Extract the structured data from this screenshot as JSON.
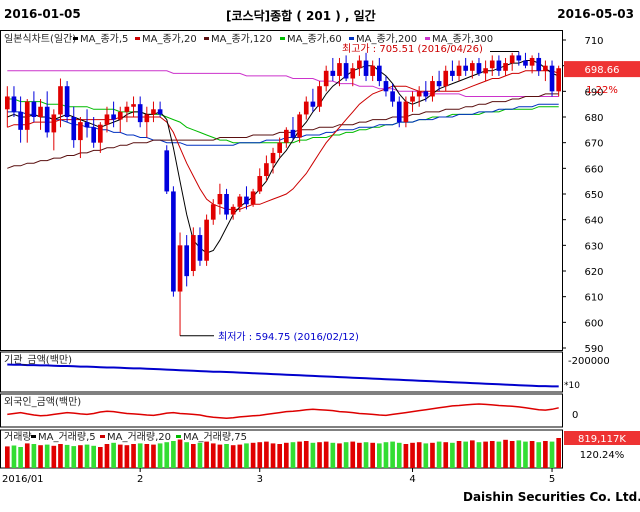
{
  "header": {
    "start_date": "2016-01-05",
    "title": "[코스닥]종합 ( 201 ) , 일간",
    "end_date": "2016-05-03"
  },
  "footer": {
    "company": "Daishin Securities Co. Ltd."
  },
  "colors": {
    "up": "#e00000",
    "down": "#0000dd",
    "ma5": "#000000",
    "ma20": "#cc0000",
    "ma60": "#00bb00",
    "ma120": "#5a1010",
    "ma200": "#0030c0",
    "ma300": "#cc33cc",
    "volume_up": "#e00000",
    "volume_down": "#33dd33",
    "institution_line": "#0000cc",
    "foreign_line": "#dd0000",
    "badge": "#ee3333"
  },
  "chart_data": {
    "type": "candlestick",
    "legend": [
      {
        "label": "일본식차트(일간)",
        "color": "#000000"
      },
      {
        "label": "MA_종가,5",
        "color": "#000000"
      },
      {
        "label": "MA_종가,20",
        "color": "#cc0000"
      },
      {
        "label": "MA_종가,120",
        "color": "#5a1010"
      },
      {
        "label": "MA_종가,60",
        "color": "#00bb00"
      },
      {
        "label": "MA_종가,200",
        "color": "#0030c0"
      },
      {
        "label": "MA_종가,300",
        "color": "#cc33cc"
      }
    ],
    "ylim": [
      590,
      710
    ],
    "yticks": [
      590,
      600,
      610,
      620,
      630,
      640,
      650,
      660,
      670,
      680,
      690,
      700,
      710
    ],
    "xticks": [
      "2016/01",
      "2",
      "3",
      "4",
      "5"
    ],
    "xtick_positions": [
      0,
      20,
      38,
      61,
      82
    ],
    "annotations": {
      "high": {
        "text": "최고가 : 705.51 (2016/04/26)",
        "index": 77,
        "value": 705.51
      },
      "low": {
        "text": "최저가 : 594.75 (2016/02/12)",
        "index": 26,
        "value": 594.75
      }
    },
    "last_price": "698.66",
    "last_change": "1.22%",
    "candles": [
      {
        "o": 683,
        "h": 692,
        "l": 676,
        "c": 688
      },
      {
        "o": 688,
        "h": 692,
        "l": 680,
        "c": 682
      },
      {
        "o": 682,
        "h": 688,
        "l": 670,
        "c": 675
      },
      {
        "o": 675,
        "h": 687,
        "l": 670,
        "c": 686
      },
      {
        "o": 686,
        "h": 690,
        "l": 678,
        "c": 680
      },
      {
        "o": 680,
        "h": 687,
        "l": 675,
        "c": 684
      },
      {
        "o": 684,
        "h": 690,
        "l": 672,
        "c": 674
      },
      {
        "o": 674,
        "h": 683,
        "l": 667,
        "c": 681
      },
      {
        "o": 681,
        "h": 695,
        "l": 676,
        "c": 692
      },
      {
        "o": 692,
        "h": 694,
        "l": 678,
        "c": 680
      },
      {
        "o": 680,
        "h": 684,
        "l": 668,
        "c": 671
      },
      {
        "o": 671,
        "h": 680,
        "l": 664,
        "c": 678
      },
      {
        "o": 678,
        "h": 683,
        "l": 672,
        "c": 676
      },
      {
        "o": 676,
        "h": 680,
        "l": 668,
        "c": 670
      },
      {
        "o": 670,
        "h": 678,
        "l": 666,
        "c": 677
      },
      {
        "o": 677,
        "h": 684,
        "l": 674,
        "c": 681
      },
      {
        "o": 681,
        "h": 686,
        "l": 676,
        "c": 679
      },
      {
        "o": 679,
        "h": 684,
        "l": 674,
        "c": 682
      },
      {
        "o": 682,
        "h": 686,
        "l": 678,
        "c": 684
      },
      {
        "o": 684,
        "h": 688,
        "l": 680,
        "c": 685
      },
      {
        "o": 685,
        "h": 688,
        "l": 676,
        "c": 678
      },
      {
        "o": 678,
        "h": 684,
        "l": 672,
        "c": 681
      },
      {
        "o": 681,
        "h": 686,
        "l": 678,
        "c": 683
      },
      {
        "o": 683,
        "h": 686,
        "l": 680,
        "c": 681
      },
      {
        "o": 667,
        "h": 669,
        "l": 650,
        "c": 651
      },
      {
        "o": 651,
        "h": 653,
        "l": 610,
        "c": 612
      },
      {
        "o": 612,
        "h": 635,
        "l": 594.75,
        "c": 630
      },
      {
        "o": 630,
        "h": 634,
        "l": 614,
        "c": 618
      },
      {
        "o": 620,
        "h": 637,
        "l": 618,
        "c": 634
      },
      {
        "o": 634,
        "h": 637,
        "l": 622,
        "c": 624
      },
      {
        "o": 624,
        "h": 642,
        "l": 622,
        "c": 640
      },
      {
        "o": 640,
        "h": 648,
        "l": 638,
        "c": 646
      },
      {
        "o": 646,
        "h": 654,
        "l": 642,
        "c": 650
      },
      {
        "o": 650,
        "h": 652,
        "l": 640,
        "c": 642
      },
      {
        "o": 642,
        "h": 646,
        "l": 640,
        "c": 645
      },
      {
        "o": 645,
        "h": 650,
        "l": 643,
        "c": 649
      },
      {
        "o": 649,
        "h": 653,
        "l": 644,
        "c": 646
      },
      {
        "o": 646,
        "h": 652,
        "l": 645,
        "c": 651
      },
      {
        "o": 651,
        "h": 660,
        "l": 650,
        "c": 657
      },
      {
        "o": 657,
        "h": 665,
        "l": 655,
        "c": 662
      },
      {
        "o": 662,
        "h": 668,
        "l": 658,
        "c": 666
      },
      {
        "o": 666,
        "h": 672,
        "l": 664,
        "c": 670
      },
      {
        "o": 670,
        "h": 676,
        "l": 668,
        "c": 675
      },
      {
        "o": 675,
        "h": 680,
        "l": 671,
        "c": 672
      },
      {
        "o": 672,
        "h": 682,
        "l": 670,
        "c": 681
      },
      {
        "o": 681,
        "h": 688,
        "l": 679,
        "c": 686
      },
      {
        "o": 686,
        "h": 691,
        "l": 682,
        "c": 684
      },
      {
        "o": 684,
        "h": 694,
        "l": 682,
        "c": 692
      },
      {
        "o": 692,
        "h": 700,
        "l": 690,
        "c": 698
      },
      {
        "o": 698,
        "h": 703,
        "l": 694,
        "c": 696
      },
      {
        "o": 696,
        "h": 703,
        "l": 692,
        "c": 701
      },
      {
        "o": 701,
        "h": 704,
        "l": 694,
        "c": 695
      },
      {
        "o": 695,
        "h": 701,
        "l": 692,
        "c": 699
      },
      {
        "o": 699,
        "h": 704,
        "l": 696,
        "c": 702
      },
      {
        "o": 702,
        "h": 705,
        "l": 694,
        "c": 696
      },
      {
        "o": 696,
        "h": 702,
        "l": 694,
        "c": 700
      },
      {
        "o": 700,
        "h": 703,
        "l": 692,
        "c": 694
      },
      {
        "o": 694,
        "h": 696,
        "l": 688,
        "c": 690
      },
      {
        "o": 690,
        "h": 693,
        "l": 684,
        "c": 686
      },
      {
        "o": 686,
        "h": 688,
        "l": 676,
        "c": 678
      },
      {
        "o": 678,
        "h": 688,
        "l": 676,
        "c": 686
      },
      {
        "o": 686,
        "h": 690,
        "l": 682,
        "c": 688
      },
      {
        "o": 688,
        "h": 692,
        "l": 684,
        "c": 690
      },
      {
        "o": 690,
        "h": 694,
        "l": 686,
        "c": 688
      },
      {
        "o": 688,
        "h": 696,
        "l": 686,
        "c": 694
      },
      {
        "o": 694,
        "h": 698,
        "l": 690,
        "c": 692
      },
      {
        "o": 692,
        "h": 700,
        "l": 690,
        "c": 698
      },
      {
        "o": 698,
        "h": 702,
        "l": 694,
        "c": 696
      },
      {
        "o": 696,
        "h": 702,
        "l": 694,
        "c": 700
      },
      {
        "o": 700,
        "h": 703,
        "l": 696,
        "c": 698
      },
      {
        "o": 698,
        "h": 702,
        "l": 695,
        "c": 701
      },
      {
        "o": 701,
        "h": 703,
        "l": 696,
        "c": 697
      },
      {
        "o": 697,
        "h": 702,
        "l": 694,
        "c": 699
      },
      {
        "o": 699,
        "h": 704,
        "l": 696,
        "c": 702
      },
      {
        "o": 702,
        "h": 704,
        "l": 696,
        "c": 698
      },
      {
        "o": 698,
        "h": 703,
        "l": 696,
        "c": 701
      },
      {
        "o": 701,
        "h": 705,
        "l": 698,
        "c": 704
      },
      {
        "o": 704,
        "h": 705.51,
        "l": 700,
        "c": 702
      },
      {
        "o": 702,
        "h": 705,
        "l": 699,
        "c": 700
      },
      {
        "o": 700,
        "h": 704,
        "l": 697,
        "c": 703
      },
      {
        "o": 703,
        "h": 705,
        "l": 696,
        "c": 698
      },
      {
        "o": 698,
        "h": 702,
        "l": 694,
        "c": 700
      },
      {
        "o": 700,
        "h": 702,
        "l": 688,
        "c": 690
      },
      {
        "o": 690,
        "h": 700,
        "l": 688,
        "c": 699
      }
    ],
    "ma5": [
      680,
      681,
      680,
      680,
      681,
      680,
      680,
      679,
      680,
      681,
      680,
      679,
      678,
      677,
      676,
      677,
      678,
      679,
      681,
      682,
      682,
      681,
      681,
      682,
      679,
      668,
      655,
      642,
      632,
      629,
      627,
      628,
      632,
      637,
      642,
      645,
      647,
      649,
      652,
      655,
      660,
      664,
      667,
      671,
      675,
      678,
      682,
      685,
      689,
      692,
      694,
      696,
      698,
      699,
      700,
      700,
      698,
      696,
      693,
      689,
      686,
      685,
      686,
      687,
      689,
      691,
      692,
      693,
      694,
      695,
      696,
      697,
      698,
      698,
      699,
      700,
      701,
      701,
      702,
      702,
      701,
      699,
      697,
      696
    ],
    "ma20": [
      676,
      677,
      677,
      677,
      678,
      678,
      678,
      678,
      679,
      679,
      679,
      679,
      679,
      679,
      679,
      679,
      679,
      680,
      680,
      680,
      680,
      680,
      680,
      680,
      678,
      674,
      668,
      662,
      657,
      652,
      648,
      646,
      645,
      644,
      644,
      644,
      645,
      646,
      646,
      647,
      648,
      649,
      650,
      652,
      655,
      658,
      662,
      666,
      670,
      673,
      676,
      679,
      682,
      685,
      687,
      689,
      690,
      691,
      692,
      692,
      692,
      691,
      690,
      690,
      690,
      690,
      690,
      690,
      690,
      691,
      692,
      693,
      694,
      695,
      695,
      696,
      697,
      697,
      698,
      698,
      698,
      698,
      698,
      697
    ],
    "ma60": [
      687,
      687,
      686,
      686,
      686,
      686,
      685,
      685,
      685,
      684,
      684,
      684,
      684,
      683,
      683,
      683,
      683,
      682,
      682,
      682,
      682,
      681,
      681,
      681,
      680,
      679,
      678,
      676,
      675,
      674,
      673,
      672,
      671,
      671,
      670,
      670,
      670,
      670,
      670,
      670,
      670,
      670,
      670,
      670,
      671,
      671,
      672,
      672,
      672,
      673,
      673,
      674,
      674,
      675,
      675,
      676,
      676,
      677,
      677,
      678,
      678,
      678,
      679,
      679,
      680,
      680,
      680,
      681,
      681,
      681,
      681,
      681,
      682,
      682,
      682,
      683,
      683,
      683,
      683,
      683,
      684,
      684,
      684,
      684
    ],
    "ma120": [
      660,
      661,
      661,
      662,
      662,
      663,
      663,
      664,
      664,
      665,
      665,
      666,
      666,
      667,
      667,
      668,
      668,
      669,
      669,
      670,
      670,
      670,
      671,
      671,
      671,
      671,
      671,
      671,
      671,
      671,
      671,
      671,
      672,
      672,
      672,
      672,
      672,
      673,
      673,
      673,
      673,
      674,
      674,
      674,
      675,
      675,
      675,
      676,
      676,
      676,
      677,
      677,
      677,
      678,
      678,
      679,
      679,
      679,
      680,
      680,
      680,
      681,
      681,
      682,
      682,
      682,
      683,
      683,
      683,
      684,
      684,
      685,
      685,
      686,
      686,
      686,
      687,
      687,
      688,
      688,
      688,
      689,
      689,
      689
    ],
    "ma200": [
      682,
      682,
      682,
      681,
      681,
      680,
      680,
      679,
      679,
      678,
      677,
      677,
      676,
      676,
      675,
      675,
      674,
      674,
      673,
      673,
      672,
      672,
      671,
      671,
      670,
      670,
      670,
      669,
      669,
      669,
      669,
      669,
      669,
      669,
      669,
      670,
      670,
      670,
      670,
      671,
      671,
      671,
      672,
      672,
      672,
      673,
      673,
      673,
      674,
      674,
      675,
      675,
      675,
      676,
      676,
      676,
      677,
      677,
      677,
      678,
      678,
      678,
      679,
      679,
      679,
      680,
      680,
      680,
      681,
      681,
      681,
      682,
      682,
      682,
      683,
      683,
      683,
      684,
      684,
      684,
      685,
      685,
      685,
      685
    ],
    "ma300": [
      698,
      698,
      698,
      698,
      698,
      698,
      698,
      698,
      698,
      698,
      698,
      698,
      698,
      698,
      698,
      698,
      698,
      698,
      698,
      698,
      698,
      698,
      698,
      698,
      698,
      697,
      697,
      697,
      697,
      697,
      697,
      697,
      697,
      697,
      697,
      697,
      696,
      696,
      696,
      696,
      696,
      696,
      696,
      695,
      695,
      695,
      695,
      694,
      694,
      694,
      693,
      693,
      693,
      692,
      692,
      692,
      691,
      691,
      691,
      690,
      690,
      690,
      690,
      689,
      689,
      689,
      689,
      689,
      689,
      688,
      688,
      688,
      688,
      688,
      688,
      688,
      688,
      688,
      688,
      688,
      688,
      688,
      688,
      688
    ],
    "institution": {
      "label": "기관_금액(백만)",
      "axis_label": "-200000",
      "axis_tag": "*10",
      "values": [
        0.85,
        0.84,
        0.84,
        0.83,
        0.83,
        0.82,
        0.82,
        0.81,
        0.8,
        0.8,
        0.79,
        0.78,
        0.78,
        0.77,
        0.76,
        0.75,
        0.75,
        0.74,
        0.73,
        0.72,
        0.72,
        0.71,
        0.7,
        0.69,
        0.68,
        0.67,
        0.66,
        0.65,
        0.64,
        0.63,
        0.62,
        0.61,
        0.61,
        0.6,
        0.59,
        0.58,
        0.57,
        0.56,
        0.55,
        0.54,
        0.53,
        0.52,
        0.51,
        0.5,
        0.49,
        0.48,
        0.47,
        0.46,
        0.45,
        0.44,
        0.43,
        0.42,
        0.41,
        0.4,
        0.39,
        0.38,
        0.37,
        0.36,
        0.35,
        0.34,
        0.33,
        0.32,
        0.31,
        0.3,
        0.29,
        0.28,
        0.27,
        0.26,
        0.25,
        0.24,
        0.23,
        0.22,
        0.21,
        0.2,
        0.19,
        0.18,
        0.17,
        0.16,
        0.15,
        0.14,
        0.13,
        0.13,
        0.12,
        0.12
      ]
    },
    "foreign": {
      "label": "외국인_금액(백만)",
      "axis_label": "0",
      "values": [
        0.45,
        0.5,
        0.55,
        0.48,
        0.42,
        0.38,
        0.4,
        0.45,
        0.5,
        0.55,
        0.52,
        0.48,
        0.45,
        0.5,
        0.58,
        0.62,
        0.6,
        0.55,
        0.5,
        0.48,
        0.45,
        0.42,
        0.4,
        0.45,
        0.52,
        0.55,
        0.5,
        0.48,
        0.45,
        0.42,
        0.35,
        0.3,
        0.28,
        0.25,
        0.28,
        0.32,
        0.35,
        0.38,
        0.4,
        0.45,
        0.5,
        0.55,
        0.6,
        0.62,
        0.65,
        0.7,
        0.72,
        0.7,
        0.68,
        0.65,
        0.6,
        0.58,
        0.55,
        0.5,
        0.48,
        0.45,
        0.42,
        0.4,
        0.45,
        0.5,
        0.55,
        0.6,
        0.65,
        0.7,
        0.75,
        0.8,
        0.85,
        0.9,
        0.92,
        0.95,
        0.98,
        1.0,
        0.98,
        0.95,
        0.92,
        0.9,
        0.88,
        0.85,
        0.8,
        0.75,
        0.7,
        0.68,
        0.72,
        0.8
      ]
    },
    "volume": {
      "legend": [
        {
          "label": "거래량",
          "color": "#000000"
        },
        {
          "label": "MA_거래량,5",
          "color": "#000000"
        },
        {
          "label": "MA_거래량,20",
          "color": "#cc0000"
        },
        {
          "label": "MA_거래량,75",
          "color": "#00bb00"
        }
      ],
      "last_value": "819,117K",
      "last_change": "120.24%",
      "values": [
        0.72,
        0.75,
        0.7,
        0.82,
        0.8,
        0.76,
        0.78,
        0.74,
        0.8,
        0.77,
        0.73,
        0.76,
        0.78,
        0.74,
        0.7,
        0.8,
        0.84,
        0.78,
        0.76,
        0.8,
        0.82,
        0.8,
        0.78,
        0.82,
        0.86,
        0.9,
        0.95,
        0.86,
        0.8,
        0.84,
        0.88,
        0.82,
        0.78,
        0.8,
        0.76,
        0.78,
        0.82,
        0.84,
        0.86,
        0.88,
        0.82,
        0.8,
        0.84,
        0.86,
        0.88,
        0.9,
        0.84,
        0.86,
        0.88,
        0.84,
        0.82,
        0.86,
        0.88,
        0.84,
        0.86,
        0.84,
        0.82,
        0.86,
        0.88,
        0.84,
        0.8,
        0.84,
        0.86,
        0.82,
        0.84,
        0.88,
        0.86,
        0.84,
        0.9,
        0.88,
        0.92,
        0.86,
        0.88,
        0.9,
        0.88,
        0.94,
        0.9,
        0.92,
        0.88,
        0.9,
        0.86,
        0.9,
        0.88,
        1.0
      ]
    }
  }
}
